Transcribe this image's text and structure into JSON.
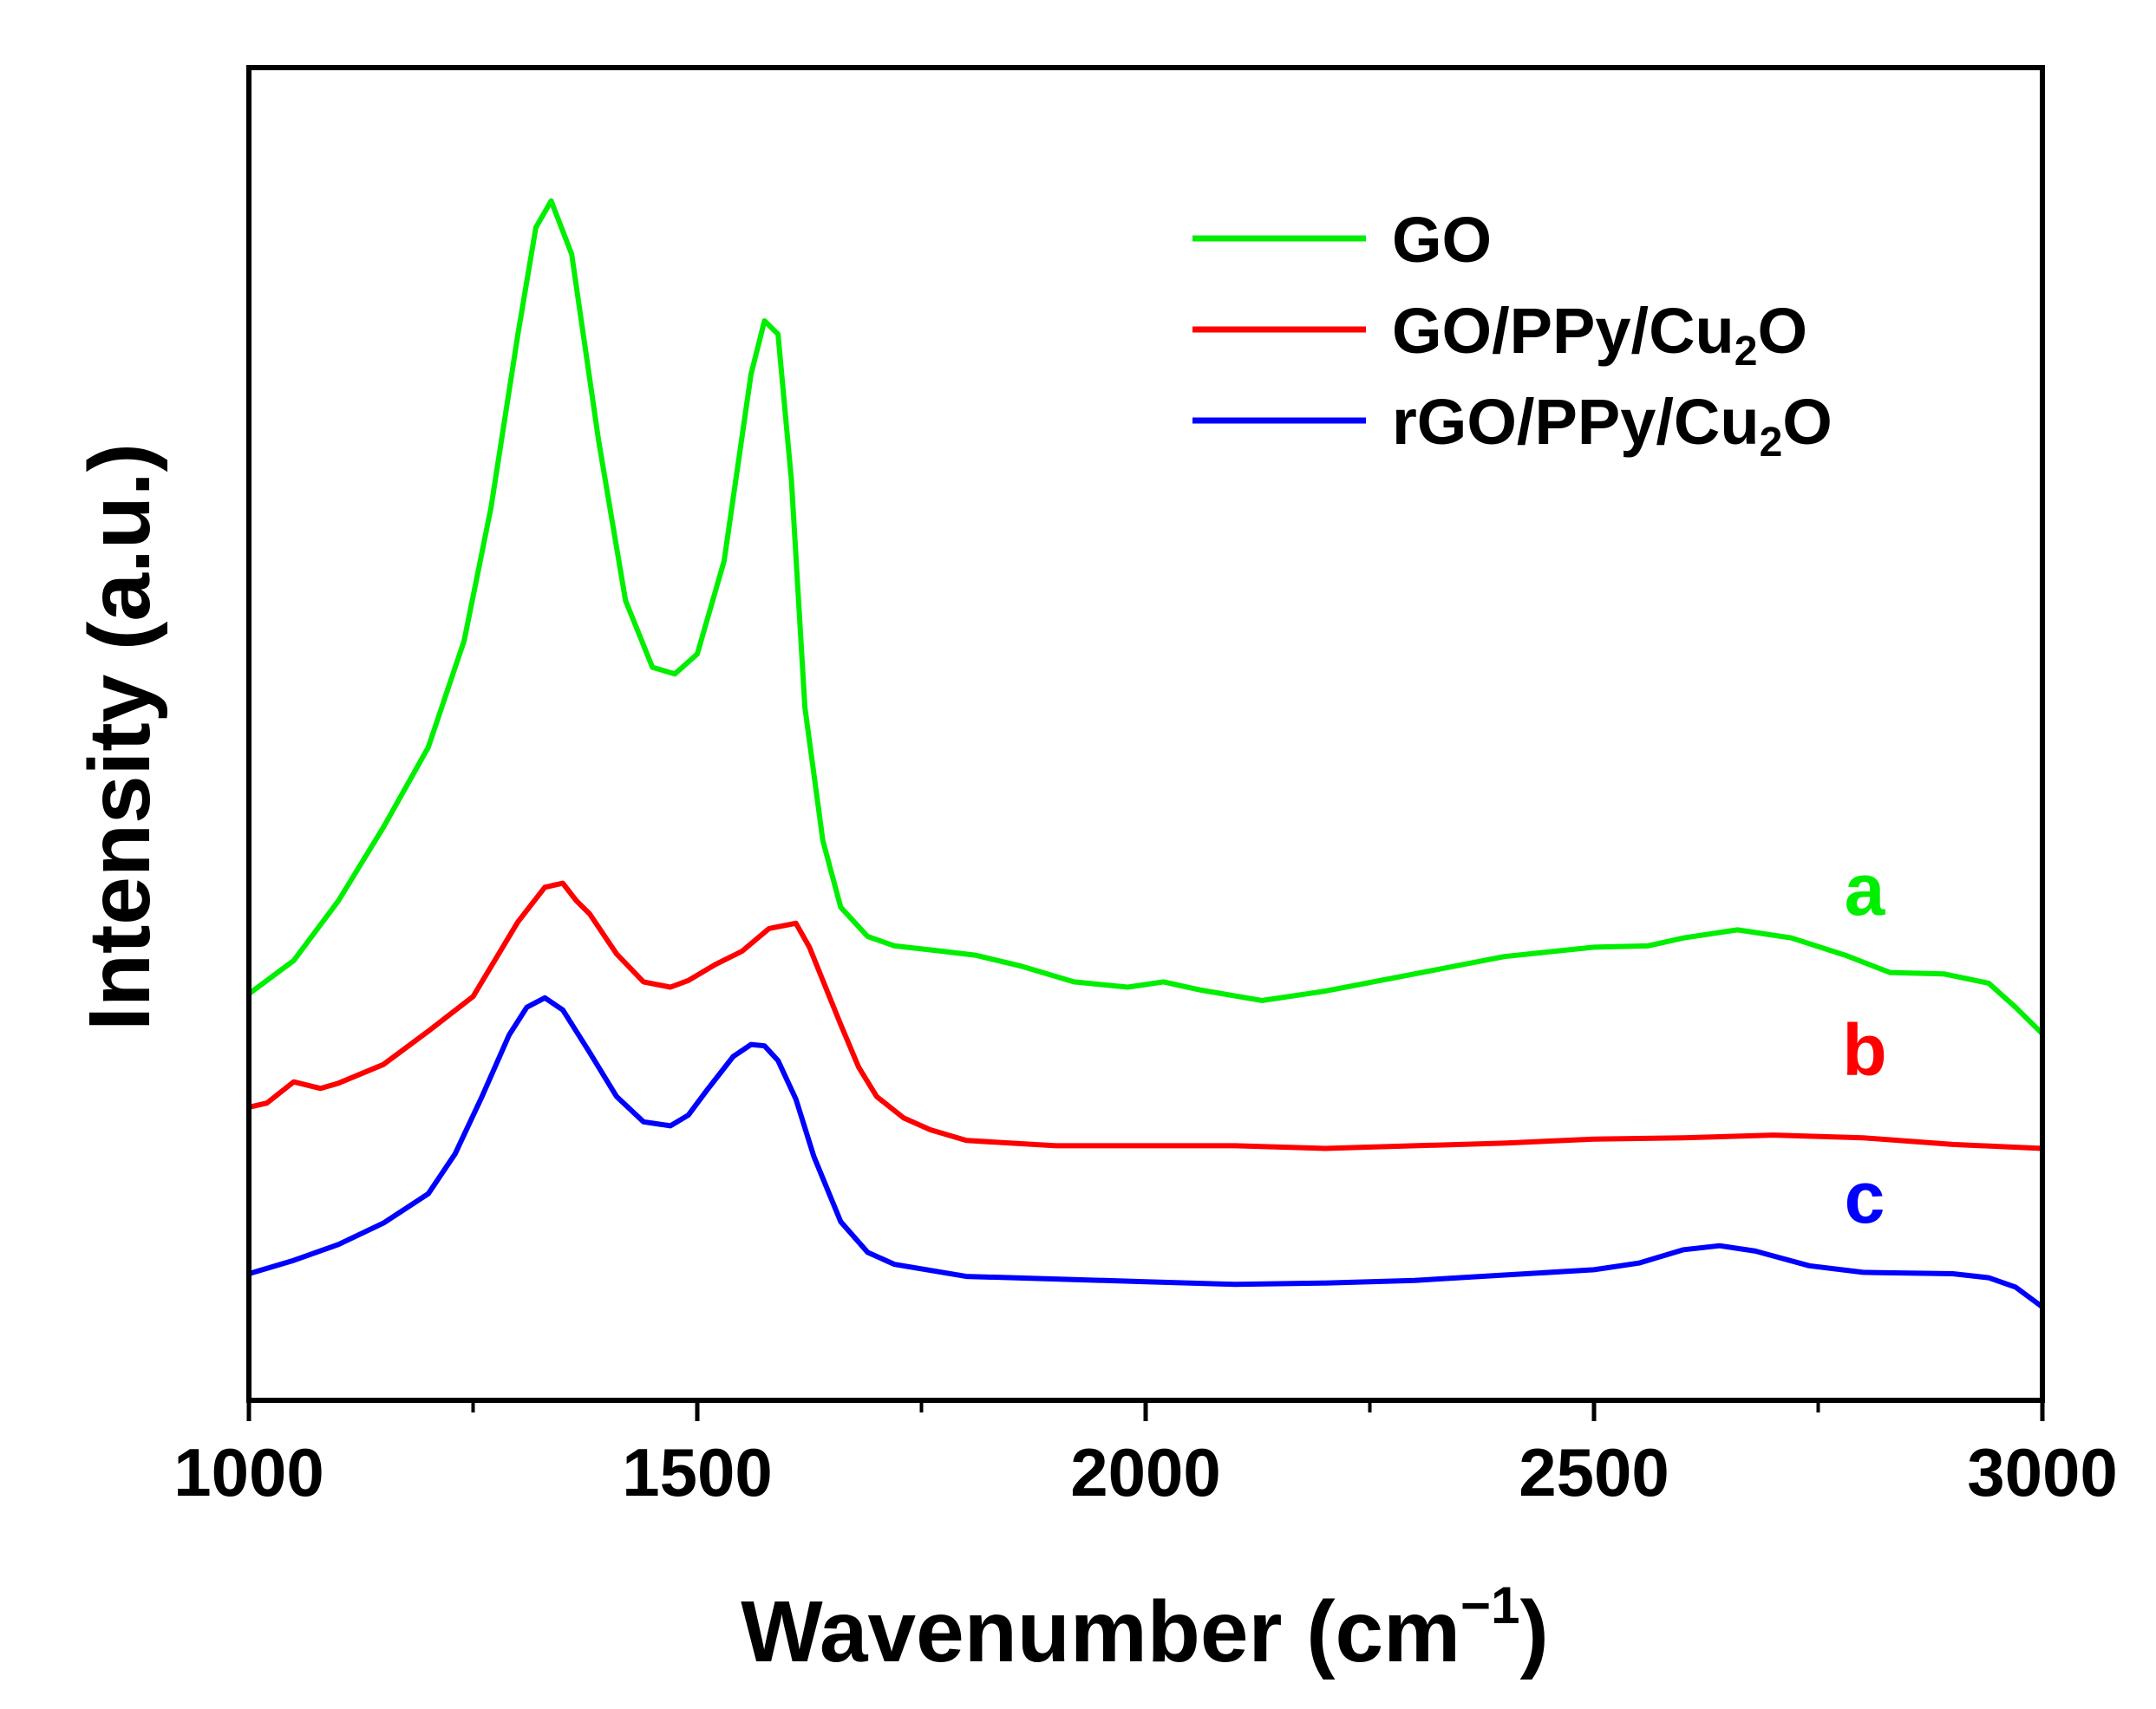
{
  "chart_data": {
    "type": "line",
    "title": "",
    "xlabel": "Wavenumber (cm",
    "xlabel_sup": "−1",
    "xlabel_close": ")",
    "ylabel": "Intensity (a.u.)",
    "xlim": [
      1000,
      3000
    ],
    "ylim": [
      0,
      100
    ],
    "xticks": [
      1000,
      1500,
      2000,
      2500,
      3000
    ],
    "xtick_labels": [
      "1000",
      "1500",
      "2000",
      "2500",
      "3000"
    ],
    "y_ticks_shown": false,
    "legend_position": "top-right",
    "series": [
      {
        "name": "GO",
        "legend_main": "GO",
        "legend_sub": "",
        "legend_tail": "",
        "label": "a",
        "color": "#00ee00",
        "x": [
          1000,
          1050,
          1100,
          1150,
          1200,
          1240,
          1270,
          1300,
          1320,
          1337,
          1360,
          1390,
          1420,
          1450,
          1475,
          1500,
          1530,
          1560,
          1575,
          1590,
          1605,
          1620,
          1640,
          1660,
          1690,
          1720,
          1760,
          1810,
          1860,
          1920,
          1980,
          2020,
          2060,
          2130,
          2200,
          2300,
          2400,
          2500,
          2560,
          2600,
          2660,
          2720,
          2780,
          2830,
          2890,
          2940,
          2970,
          3000
        ],
        "y": [
          30.5,
          33,
          37.5,
          43,
          49,
          57,
          67,
          80,
          88,
          90,
          86,
          72,
          60,
          55,
          54.5,
          56,
          63,
          77,
          81,
          80,
          69,
          52,
          42,
          37,
          34.8,
          34.1,
          33.8,
          33.4,
          32.6,
          31.4,
          31,
          31.4,
          30.8,
          30,
          30.7,
          32,
          33.3,
          34,
          34.1,
          34.7,
          35.3,
          34.7,
          33.4,
          32.1,
          32,
          31.3,
          29.5,
          27.5
        ]
      },
      {
        "name": "GO/PPy/Cu",
        "legend_main": "GO/PPy/Cu",
        "legend_sub": "2",
        "legend_tail": "O",
        "label": "b",
        "color": "#ff0000",
        "x": [
          1000,
          1020,
          1050,
          1080,
          1100,
          1150,
          1200,
          1250,
          1300,
          1330,
          1350,
          1365,
          1380,
          1410,
          1440,
          1470,
          1490,
          1520,
          1550,
          1580,
          1610,
          1625,
          1640,
          1660,
          1680,
          1700,
          1730,
          1760,
          1800,
          1900,
          2000,
          2100,
          2200,
          2300,
          2400,
          2500,
          2600,
          2700,
          2800,
          2900,
          3000
        ],
        "y": [
          22,
          22.3,
          23.9,
          23.4,
          23.8,
          25.2,
          27.7,
          30.3,
          35.9,
          38.5,
          38.8,
          37.5,
          36.5,
          33.5,
          31.4,
          31,
          31.5,
          32.7,
          33.7,
          35.4,
          35.8,
          34,
          31.5,
          28.2,
          25,
          22.8,
          21.2,
          20.3,
          19.5,
          19.1,
          19.1,
          19.1,
          18.9,
          19.1,
          19.3,
          19.6,
          19.7,
          19.9,
          19.7,
          19.2,
          18.9
        ]
      },
      {
        "name": "rGO/PPy/Cu",
        "legend_main": "rGO/PPy/Cu",
        "legend_sub": "2",
        "legend_tail": "O",
        "label": "c",
        "color": "#0000ff",
        "x": [
          1000,
          1050,
          1100,
          1150,
          1200,
          1230,
          1260,
          1290,
          1310,
          1330,
          1350,
          1380,
          1410,
          1440,
          1470,
          1490,
          1510,
          1540,
          1560,
          1575,
          1590,
          1610,
          1630,
          1660,
          1690,
          1720,
          1800,
          1900,
          2000,
          2100,
          2200,
          2300,
          2400,
          2500,
          2550,
          2600,
          2640,
          2680,
          2740,
          2800,
          2900,
          2940,
          2970,
          3000
        ],
        "y": [
          9.5,
          10.5,
          11.7,
          13.3,
          15.5,
          18.5,
          22.8,
          27.4,
          29.5,
          30.2,
          29.3,
          26.1,
          22.8,
          20.9,
          20.6,
          21.4,
          23.2,
          25.8,
          26.7,
          26.6,
          25.5,
          22.6,
          18.3,
          13.4,
          11.1,
          10.2,
          9.3,
          9.1,
          8.9,
          8.7,
          8.8,
          9,
          9.4,
          9.8,
          10.3,
          11.3,
          11.6,
          11.2,
          10.1,
          9.6,
          9.5,
          9.2,
          8.5,
          7
        ]
      }
    ]
  }
}
